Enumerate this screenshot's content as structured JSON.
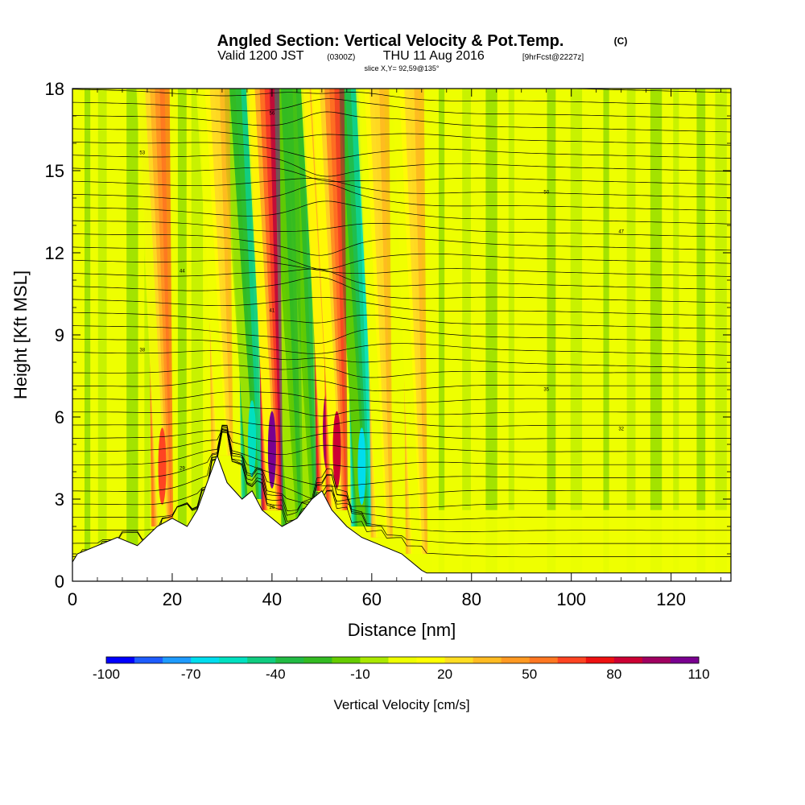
{
  "chart_data": {
    "type": "heatmap",
    "title": "Angled Section: Vertical Velocity & Pot.Temp.",
    "title_tag": "(C)",
    "subtitle": {
      "valid_prefix": "Valid 1200 JST",
      "zulu": "(0300Z)",
      "date": "THU 11 Aug 2016",
      "forecast": "[9hrFcst@2227z]"
    },
    "slice_label": "slice X,Y= 92,59@135°",
    "xlabel": "Distance [nm]",
    "ylabel": "Height [Kft MSL]",
    "xlim": [
      0,
      132
    ],
    "ylim": [
      0,
      18
    ],
    "x_ticks": [
      "0",
      "20",
      "40",
      "60",
      "80",
      "100",
      "120"
    ],
    "y_ticks": [
      "0",
      "3",
      "6",
      "9",
      "12",
      "15",
      "18"
    ],
    "colorbar": {
      "label": "Vertical Velocity [cm/s]",
      "tick_labels": [
        "-100",
        "-70",
        "-40",
        "-10",
        "20",
        "50",
        "80",
        "110"
      ],
      "levels": [
        -100,
        -90,
        -80,
        -70,
        -60,
        -50,
        -40,
        -30,
        -20,
        -10,
        0,
        10,
        20,
        30,
        40,
        50,
        60,
        70,
        80,
        90,
        100,
        110
      ],
      "colors": [
        "#0000ff",
        "#1e5cff",
        "#1e9bff",
        "#00ddee",
        "#00e0c0",
        "#10cc80",
        "#22bb44",
        "#33bb22",
        "#66cc00",
        "#aae800",
        "#eeff00",
        "#ffff00",
        "#ffdd22",
        "#ffbb22",
        "#ff9922",
        "#ff7722",
        "#ff4422",
        "#ee1111",
        "#cc0033",
        "#a00060",
        "#7a0090"
      ]
    },
    "updraft_columns": [
      {
        "x": 18,
        "peak_cm_s": 60
      },
      {
        "x": 30,
        "peak_cm_s": 40
      },
      {
        "x": 40,
        "peak_cm_s": 100
      },
      {
        "x": 51,
        "peak_cm_s": 90
      },
      {
        "x": 53,
        "peak_cm_s": 80
      },
      {
        "x": 62,
        "peak_cm_s": 40
      },
      {
        "x": 69,
        "peak_cm_s": 40
      }
    ],
    "downdraft_columns": [
      {
        "x": 36,
        "min_cm_s": -60
      },
      {
        "x": 47,
        "min_cm_s": -40
      },
      {
        "x": 58,
        "min_cm_s": -70
      },
      {
        "x": 44,
        "min_cm_s": -30
      }
    ],
    "terrain_kft": [
      [
        0,
        0.7
      ],
      [
        1,
        1.0
      ],
      [
        5,
        1.3
      ],
      [
        9,
        1.6
      ],
      [
        13,
        1.3
      ],
      [
        17,
        2.0
      ],
      [
        20,
        2.3
      ],
      [
        23,
        2.0
      ],
      [
        25,
        2.6
      ],
      [
        27,
        3.6
      ],
      [
        29,
        4.6
      ],
      [
        31,
        3.6
      ],
      [
        34,
        3.0
      ],
      [
        36,
        3.3
      ],
      [
        38,
        2.6
      ],
      [
        42,
        2.0
      ],
      [
        45,
        2.3
      ],
      [
        48,
        3.0
      ],
      [
        50,
        3.3
      ],
      [
        52,
        2.6
      ],
      [
        55,
        2.0
      ],
      [
        58,
        1.6
      ],
      [
        62,
        1.3
      ],
      [
        66,
        1.0
      ],
      [
        70,
        0.4
      ],
      [
        71,
        0.3
      ],
      [
        132,
        0.3
      ]
    ],
    "theta_contours_C": [
      "23",
      "24",
      "25",
      "26",
      "27",
      "28",
      "29",
      "30",
      "31",
      "32",
      "33",
      "34",
      "35",
      "36",
      "37",
      "38",
      "39",
      "40",
      "41",
      "42",
      "43",
      "44",
      "45",
      "46",
      "47",
      "48",
      "49",
      "50",
      "51",
      "52",
      "53",
      "54",
      "55",
      "56",
      "57",
      "58",
      "59",
      "60"
    ]
  }
}
